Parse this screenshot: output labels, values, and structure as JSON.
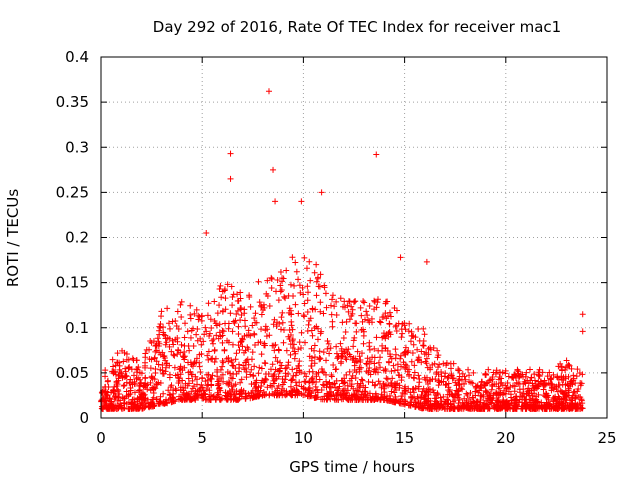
{
  "chart_data": {
    "type": "scatter",
    "title": "Day 292 of 2016, Rate Of TEC Index for receiver mac1",
    "xlabel": "GPS time / hours",
    "ylabel": "ROTI / TECUs",
    "xlim": [
      0,
      25
    ],
    "ylim": [
      0,
      0.4
    ],
    "x_ticks": [
      0,
      5,
      10,
      15,
      20,
      25
    ],
    "x_tick_labels": [
      "0",
      "5",
      "10",
      "15",
      "20",
      "25"
    ],
    "y_ticks": [
      0,
      0.05,
      0.1,
      0.15,
      0.2,
      0.25,
      0.3,
      0.35,
      0.4
    ],
    "y_tick_labels": [
      "0",
      "0.05",
      "0.1",
      "0.15",
      "0.2",
      "0.25",
      "0.3",
      "0.35",
      "0.4"
    ],
    "grid": true,
    "marker": "+",
    "color": "#ff0000",
    "series": [
      {
        "name": "ROTI",
        "notable_points": [
          {
            "x": 8.3,
            "y": 0.362
          },
          {
            "x": 6.4,
            "y": 0.293
          },
          {
            "x": 13.6,
            "y": 0.292
          },
          {
            "x": 8.5,
            "y": 0.275
          },
          {
            "x": 6.4,
            "y": 0.265
          },
          {
            "x": 10.9,
            "y": 0.25
          },
          {
            "x": 8.6,
            "y": 0.24
          },
          {
            "x": 9.9,
            "y": 0.24
          },
          {
            "x": 5.2,
            "y": 0.205
          },
          {
            "x": 23.8,
            "y": 0.115
          },
          {
            "x": 23.8,
            "y": 0.096
          },
          {
            "x": 14.8,
            "y": 0.178
          },
          {
            "x": 16.1,
            "y": 0.173
          }
        ],
        "envelope": {
          "hours": [
            0,
            1,
            2,
            3,
            4,
            5,
            6,
            7,
            8,
            9,
            10,
            11,
            12,
            13,
            14,
            15,
            16,
            17,
            18,
            19,
            20,
            21,
            22,
            23,
            23.8
          ],
          "typical_max": [
            0.05,
            0.07,
            0.06,
            0.11,
            0.12,
            0.11,
            0.14,
            0.13,
            0.15,
            0.16,
            0.17,
            0.15,
            0.12,
            0.12,
            0.13,
            0.1,
            0.09,
            0.06,
            0.05,
            0.05,
            0.05,
            0.05,
            0.05,
            0.06,
            0.05
          ],
          "baseline": [
            0.01,
            0.01,
            0.01,
            0.015,
            0.02,
            0.02,
            0.02,
            0.02,
            0.025,
            0.025,
            0.025,
            0.02,
            0.02,
            0.02,
            0.02,
            0.015,
            0.01,
            0.01,
            0.01,
            0.01,
            0.01,
            0.01,
            0.01,
            0.01,
            0.01
          ]
        }
      }
    ]
  }
}
